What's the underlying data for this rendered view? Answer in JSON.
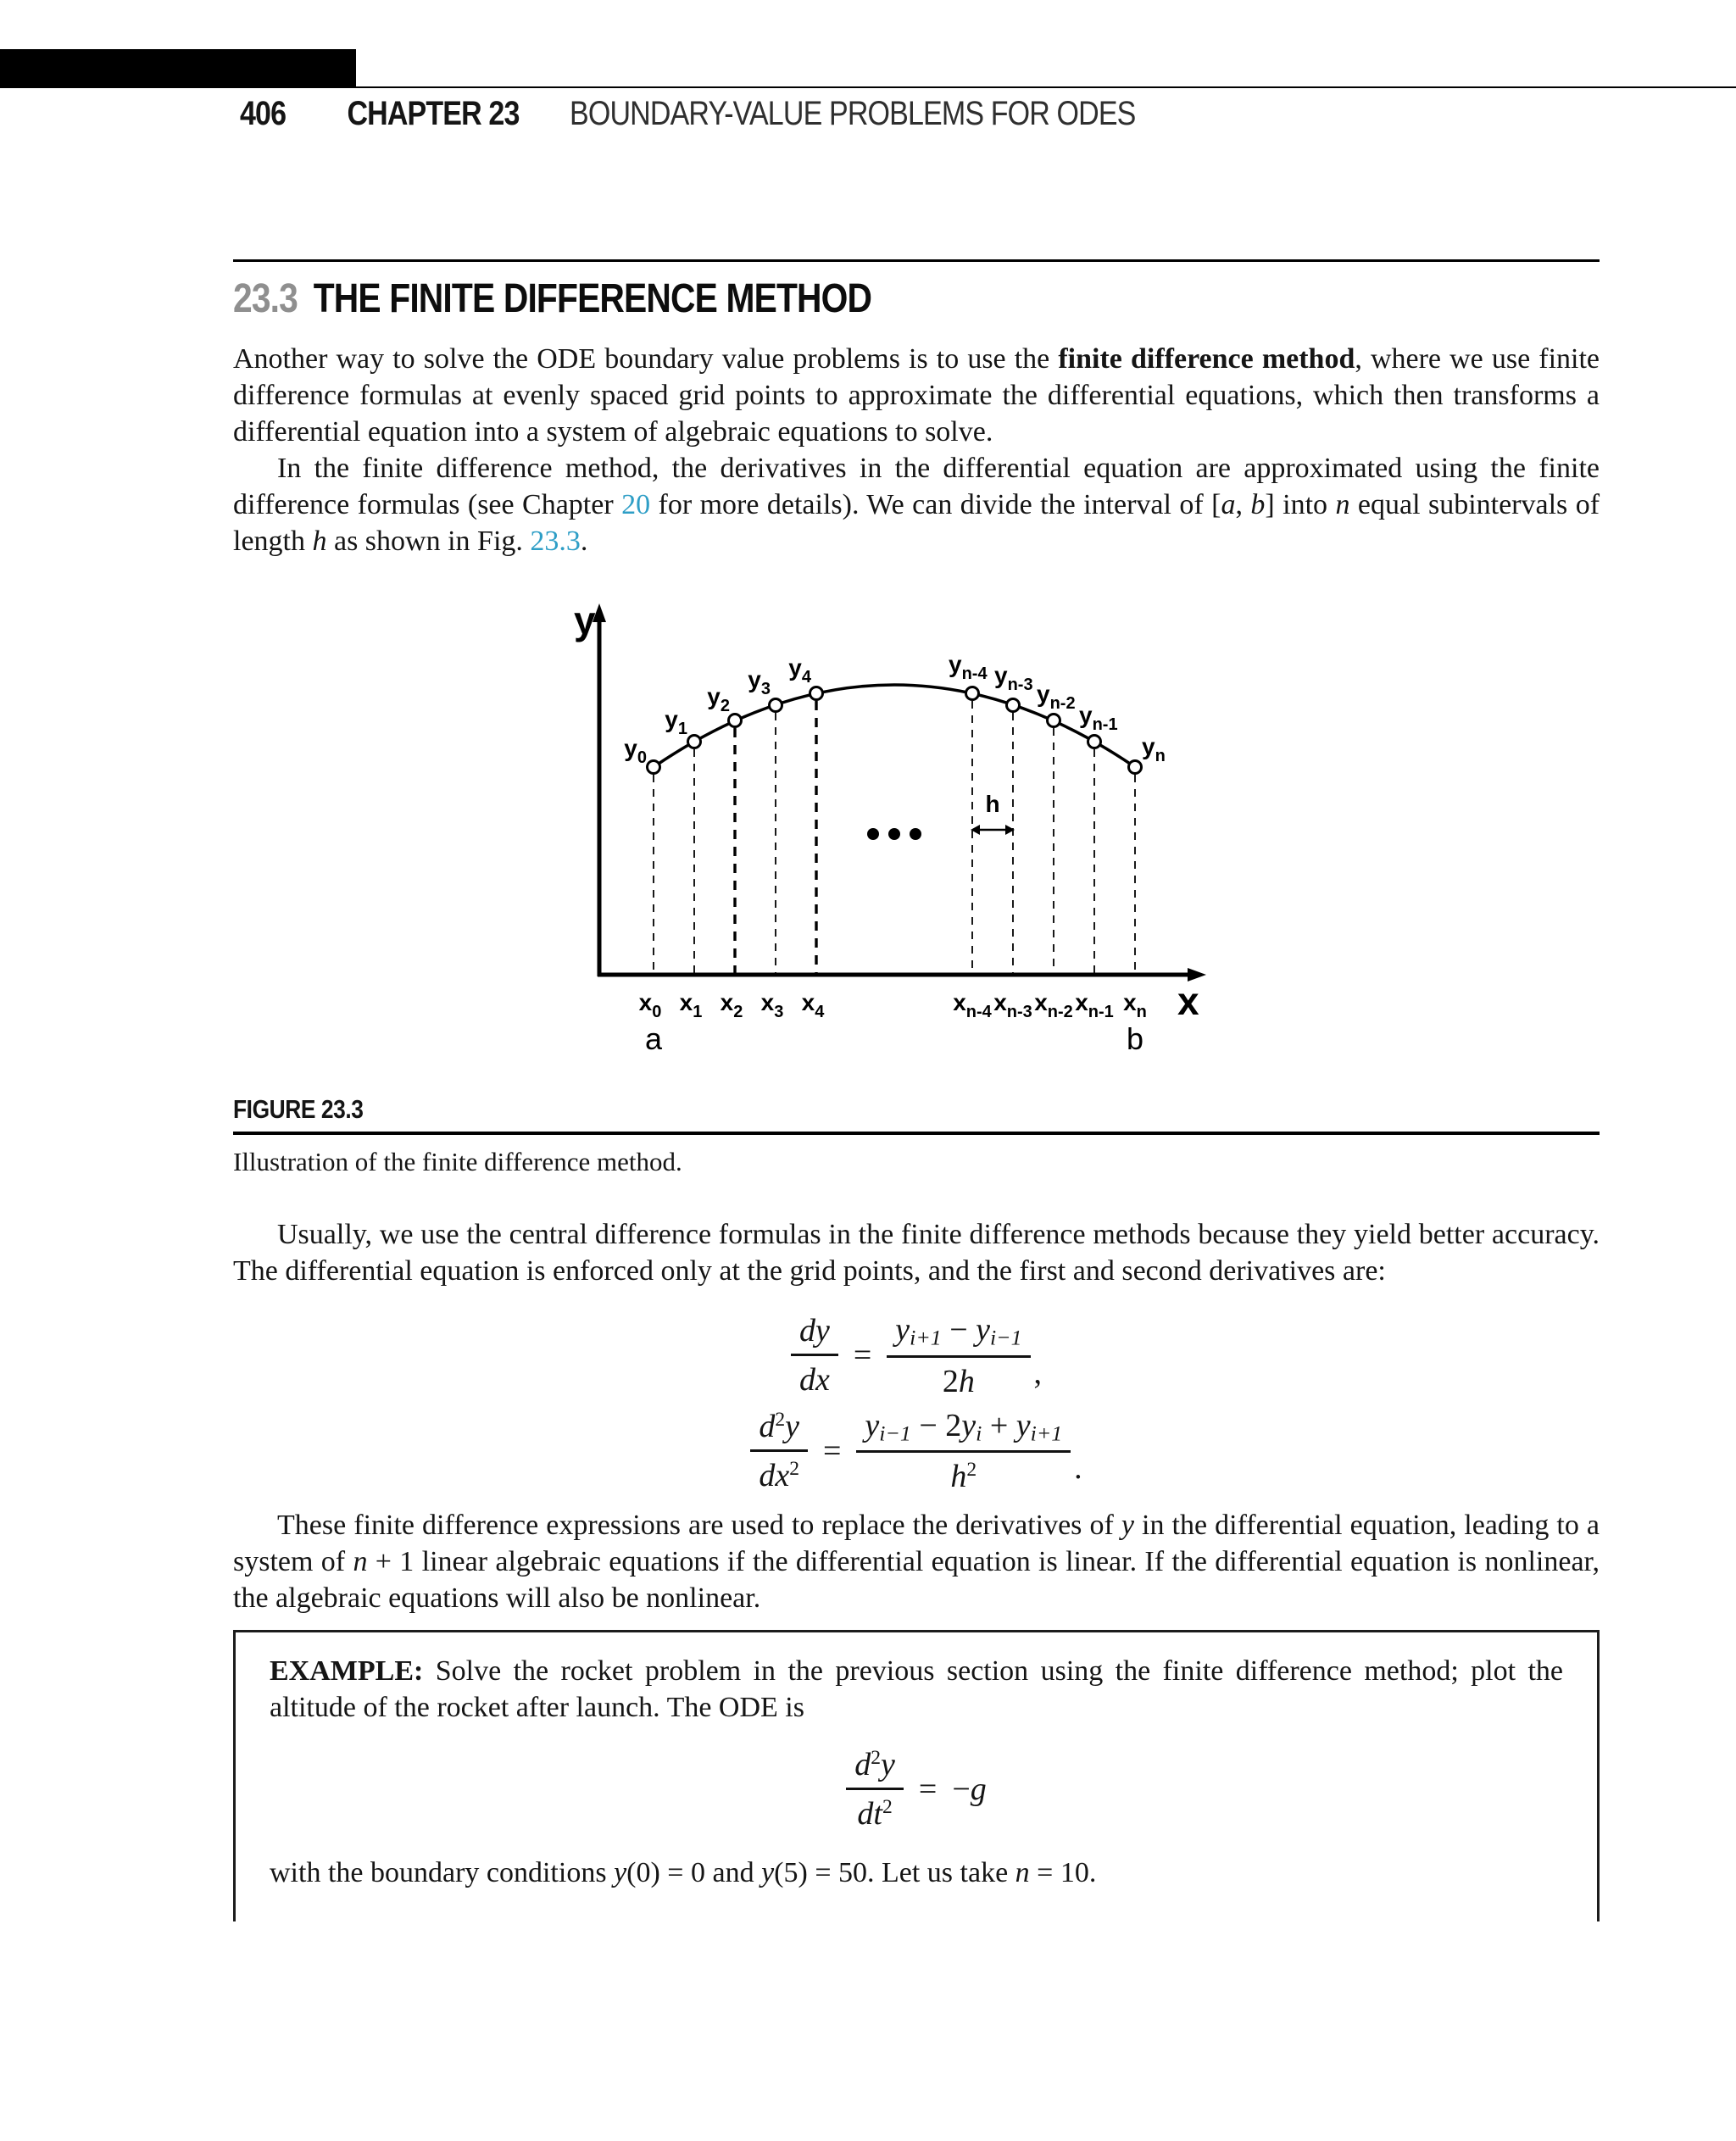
{
  "page": {
    "background": "#ffffff",
    "text_color": "#151515",
    "link_color": "#2e9ec6"
  },
  "header": {
    "page_number": "406",
    "chapter_label": "CHAPTER 23",
    "chapter_title": "BOUNDARY-VALUE PROBLEMS FOR ODES"
  },
  "section": {
    "number": "23.3",
    "title": "THE FINITE DIFFERENCE METHOD"
  },
  "paragraphs": {
    "p1": [
      [
        "Another way to solve the ODE boundary value problems is to use the ",
        ""
      ],
      [
        "finite difference method",
        "b"
      ],
      [
        ", where we use finite difference formulas at evenly spaced grid points to approximate the differential equations, which then transforms a differential equation into a system of algebraic equations to solve.",
        ""
      ]
    ],
    "p2": [
      [
        "In the finite difference method, the derivatives in the differential equation are approximated using the finite difference formulas (see Chapter ",
        ""
      ],
      [
        "20",
        "link"
      ],
      [
        " for more details). We can divide the interval of [",
        ""
      ],
      [
        "a",
        "i"
      ],
      [
        ", ",
        ""
      ],
      [
        "b",
        "i"
      ],
      [
        "] into ",
        ""
      ],
      [
        "n",
        "i"
      ],
      [
        " equal subintervals of length ",
        ""
      ],
      [
        "h",
        "i"
      ],
      [
        " as shown in Fig. ",
        ""
      ],
      [
        "23.3",
        "link"
      ],
      [
        ".",
        ""
      ]
    ],
    "p3": [
      [
        "Usually, we use the central difference formulas in the finite difference methods because they yield better accuracy. The differential equation is enforced only at the grid points, and the first and second derivatives are:",
        ""
      ]
    ],
    "p4": [
      [
        "These finite difference expressions are used to replace the derivatives of ",
        ""
      ],
      [
        "y",
        "i"
      ],
      [
        " in the differential equation, leading to a system of ",
        ""
      ],
      [
        "n",
        "i"
      ],
      [
        " + 1 linear algebraic equations if the differential equation is linear. If the differential equation is nonlinear, the algebraic equations will also be nonlinear.",
        ""
      ]
    ]
  },
  "figure": {
    "y_axis_label": "y",
    "x_axis_label": "x",
    "h_label": "h",
    "a_label": "a",
    "b_label": "b",
    "y_points": [
      {
        "base": "y",
        "sub": "0"
      },
      {
        "base": "y",
        "sub": "1"
      },
      {
        "base": "y",
        "sub": "2"
      },
      {
        "base": "y",
        "sub": "3"
      },
      {
        "base": "y",
        "sub": "4"
      },
      {
        "base": "y",
        "sub": "n-4"
      },
      {
        "base": "y",
        "sub": "n-3"
      },
      {
        "base": "y",
        "sub": "n-2"
      },
      {
        "base": "y",
        "sub": "n-1"
      },
      {
        "base": "y",
        "sub": "n"
      }
    ],
    "x_points": [
      {
        "base": "x",
        "sub": "0"
      },
      {
        "base": "x",
        "sub": "1"
      },
      {
        "base": "x",
        "sub": "2"
      },
      {
        "base": "x",
        "sub": "3"
      },
      {
        "base": "x",
        "sub": "4"
      },
      {
        "base": "x",
        "sub": "n-4"
      },
      {
        "base": "x",
        "sub": "n-3"
      },
      {
        "base": "x",
        "sub": "n-2"
      },
      {
        "base": "x",
        "sub": "n-1"
      },
      {
        "base": "x",
        "sub": "n"
      }
    ]
  },
  "figure_caption": {
    "label": "FIGURE 23.3",
    "text": "Illustration of the finite difference method."
  },
  "math": {
    "eq1": {
      "lhs_num": [
        [
          "dy",
          "i"
        ]
      ],
      "lhs_den": [
        [
          "dx",
          "i"
        ]
      ],
      "sign": "=",
      "rhs_num": [
        [
          "y",
          "i"
        ],
        [
          "i+1",
          "sub"
        ],
        [
          " − ",
          ""
        ],
        [
          "y",
          "i"
        ],
        [
          "i−1",
          "sub"
        ]
      ],
      "rhs_den": [
        [
          "2",
          ""
        ],
        [
          "h",
          "i"
        ]
      ],
      "tail": ","
    },
    "eq2": {
      "lhs_num": [
        [
          "d",
          "i"
        ],
        [
          "2",
          "sup"
        ],
        [
          "y",
          "i"
        ]
      ],
      "lhs_den": [
        [
          "d",
          "i"
        ],
        [
          "x",
          "i"
        ],
        [
          "2",
          "sup"
        ]
      ],
      "sign": "=",
      "rhs_num": [
        [
          "y",
          "i"
        ],
        [
          "i−1",
          "sub"
        ],
        [
          " − 2",
          ""
        ],
        [
          "y",
          "i"
        ],
        [
          "i",
          "sub"
        ],
        [
          " + ",
          ""
        ],
        [
          "y",
          "i"
        ],
        [
          "i+1",
          "sub"
        ]
      ],
      "rhs_den": [
        [
          "h",
          "i"
        ],
        [
          "2",
          "sup"
        ]
      ],
      "tail": "."
    },
    "eq3": {
      "lhs_num": [
        [
          "d",
          "i"
        ],
        [
          "2",
          "sup"
        ],
        [
          "y",
          "i"
        ]
      ],
      "lhs_den": [
        [
          "d",
          "i"
        ],
        [
          "t",
          "i"
        ],
        [
          "2",
          "sup"
        ]
      ],
      "sign": "=",
      "rhs": [
        [
          "−",
          ""
        ],
        [
          "g",
          "i"
        ]
      ]
    }
  },
  "example": {
    "p1": [
      [
        "EXAMPLE:",
        "b"
      ],
      [
        " Solve the rocket problem in the previous section using the finite difference method; plot the altitude of the rocket after launch. The ODE is",
        ""
      ]
    ],
    "p2": [
      [
        "with the boundary conditions ",
        ""
      ],
      [
        "y",
        "i"
      ],
      [
        "(0) = 0 and ",
        ""
      ],
      [
        "y",
        "i"
      ],
      [
        "(5) = 50. Let us take ",
        ""
      ],
      [
        "n",
        "i"
      ],
      [
        " = 10.",
        ""
      ]
    ]
  }
}
